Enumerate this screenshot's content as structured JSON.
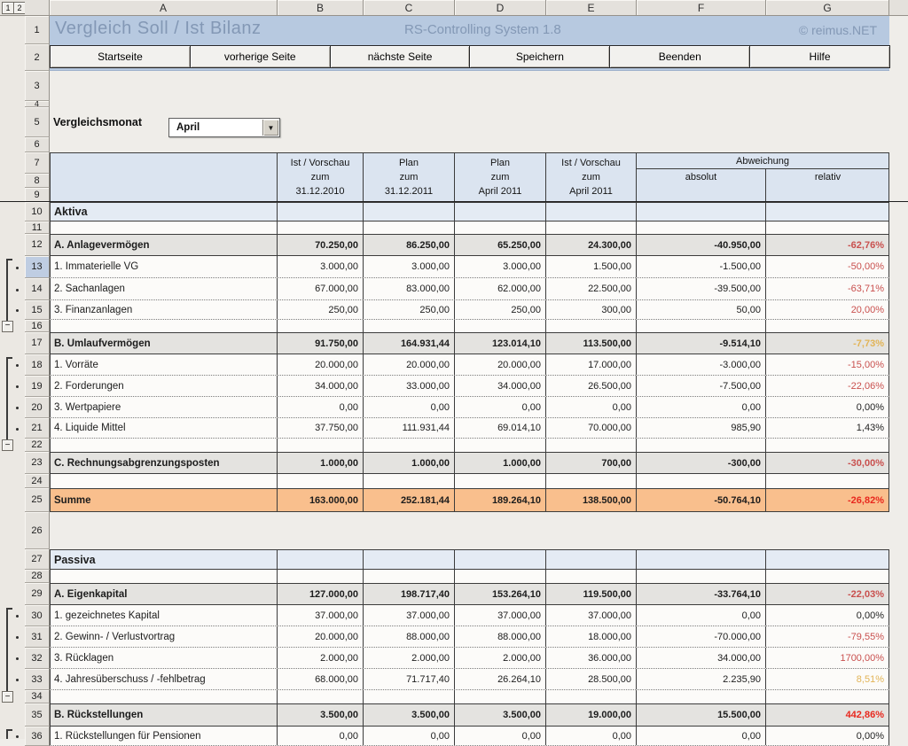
{
  "title_bar": {
    "title": "Vergleich Soll / Ist Bilanz",
    "system": "RS-Controlling System 1.8",
    "copyright": "© reimus.NET"
  },
  "toolbar": {
    "buttons": [
      "Startseite",
      "vorherige Seite",
      "nächste Seite",
      "Speichern",
      "Beenden",
      "Hilfe"
    ]
  },
  "controls": {
    "month_label": "Vergleichsmonat",
    "month_value": "April"
  },
  "colors": {
    "title_blue": "#b7c9e0",
    "header_blue": "#dbe4f0",
    "section_gray": "#e4e3e0",
    "label_blue": "#e4ebf4",
    "summe_orange": "#f9bf8d",
    "pct_red": "#c9504e",
    "pct_orange": "#e2b457",
    "pct_bright_red": "#e8281e"
  },
  "sheet": {
    "column_letters": [
      "A",
      "B",
      "C",
      "D",
      "E",
      "F",
      "G"
    ],
    "row_numbers": [
      1,
      2,
      3,
      4,
      5,
      6,
      7,
      8,
      9,
      10,
      11,
      12,
      13,
      14,
      15,
      16,
      17,
      18,
      19,
      20,
      21,
      22,
      23,
      24,
      25,
      26,
      27,
      28,
      29,
      30,
      31,
      32,
      33,
      34,
      35,
      36
    ],
    "active_row": 13,
    "header": {
      "col_b": [
        "Ist / Vorschau",
        "zum",
        "31.12.2010"
      ],
      "col_c": [
        "Plan",
        "zum",
        "31.12.2011"
      ],
      "col_d": [
        "Plan",
        "zum",
        "April 2011"
      ],
      "col_e": [
        "Ist / Vorschau",
        "zum",
        "April 2011"
      ],
      "abweichung": "Abweichung",
      "absolut": "absolut",
      "relativ": "relativ"
    },
    "outline": {
      "level_buttons": [
        "1",
        "2"
      ],
      "groups": [
        {
          "dots": [
            13,
            14,
            15
          ],
          "collapse": 16
        },
        {
          "dots": [
            18,
            19,
            20,
            21
          ],
          "collapse": 22
        },
        {
          "dots": [
            30,
            31,
            32,
            33
          ],
          "collapse": 34
        },
        {
          "dots": [
            36
          ],
          "collapse": null
        }
      ]
    },
    "rows": [
      {
        "num": 10,
        "type": "label",
        "label": "Aktiva"
      },
      {
        "num": 11,
        "type": "blank",
        "label": ""
      },
      {
        "num": 12,
        "type": "section",
        "label": "A. Anlagevermögen",
        "values": [
          "70.250,00",
          "86.250,00",
          "65.250,00",
          "24.300,00",
          "-40.950,00"
        ],
        "pct": "-62,76%",
        "pct_class": "red"
      },
      {
        "num": 13,
        "type": "detail",
        "label": "1. Immaterielle VG",
        "values": [
          "3.000,00",
          "3.000,00",
          "3.000,00",
          "1.500,00",
          "-1.500,00"
        ],
        "pct": "-50,00%",
        "pct_class": "red"
      },
      {
        "num": 14,
        "type": "detail",
        "label": "2. Sachanlagen",
        "values": [
          "67.000,00",
          "83.000,00",
          "62.000,00",
          "22.500,00",
          "-39.500,00"
        ],
        "pct": "-63,71%",
        "pct_class": "red"
      },
      {
        "num": 15,
        "type": "detail",
        "label": "3. Finanzanlagen",
        "values": [
          "250,00",
          "250,00",
          "250,00",
          "300,00",
          "50,00"
        ],
        "pct": "20,00%",
        "pct_class": "red"
      },
      {
        "num": 16,
        "type": "blank",
        "label": ""
      },
      {
        "num": 17,
        "type": "section",
        "label": "B. Umlaufvermögen",
        "values": [
          "91.750,00",
          "164.931,44",
          "123.014,10",
          "113.500,00",
          "-9.514,10"
        ],
        "pct": "-7,73%",
        "pct_class": "orange"
      },
      {
        "num": 18,
        "type": "detail",
        "label": "1. Vorräte",
        "values": [
          "20.000,00",
          "20.000,00",
          "20.000,00",
          "17.000,00",
          "-3.000,00"
        ],
        "pct": "-15,00%",
        "pct_class": "red"
      },
      {
        "num": 19,
        "type": "detail",
        "label": "2. Forderungen",
        "values": [
          "34.000,00",
          "33.000,00",
          "34.000,00",
          "26.500,00",
          "-7.500,00"
        ],
        "pct": "-22,06%",
        "pct_class": "red"
      },
      {
        "num": 20,
        "type": "detail",
        "label": "3. Wertpapiere",
        "values": [
          "0,00",
          "0,00",
          "0,00",
          "0,00",
          "0,00"
        ],
        "pct": "0,00%",
        "pct_class": "black"
      },
      {
        "num": 21,
        "type": "detail",
        "label": "4. Liquide Mittel",
        "values": [
          "37.750,00",
          "111.931,44",
          "69.014,10",
          "70.000,00",
          "985,90"
        ],
        "pct": "1,43%",
        "pct_class": "black"
      },
      {
        "num": 22,
        "type": "blank",
        "label": ""
      },
      {
        "num": 23,
        "type": "section",
        "label": "C. Rechnungsabgrenzungsposten",
        "values": [
          "1.000,00",
          "1.000,00",
          "1.000,00",
          "700,00",
          "-300,00"
        ],
        "pct": "-30,00%",
        "pct_class": "red"
      },
      {
        "num": 24,
        "type": "blank",
        "label": ""
      },
      {
        "num": 25,
        "type": "summe",
        "label": "Summe",
        "values": [
          "163.000,00",
          "252.181,44",
          "189.264,10",
          "138.500,00",
          "-50.764,10"
        ],
        "pct": "-26,82%",
        "pct_class": "bright"
      },
      {
        "num": 26,
        "type": "gap",
        "label": ""
      },
      {
        "num": 27,
        "type": "label",
        "label": "Passiva"
      },
      {
        "num": 28,
        "type": "blank",
        "label": ""
      },
      {
        "num": 29,
        "type": "section",
        "label": "A. Eigenkapital",
        "values": [
          "127.000,00",
          "198.717,40",
          "153.264,10",
          "119.500,00",
          "-33.764,10"
        ],
        "pct": "-22,03%",
        "pct_class": "red"
      },
      {
        "num": 30,
        "type": "detail",
        "label": "1. gezeichnetes Kapital",
        "values": [
          "37.000,00",
          "37.000,00",
          "37.000,00",
          "37.000,00",
          "0,00"
        ],
        "pct": "0,00%",
        "pct_class": "black"
      },
      {
        "num": 31,
        "type": "detail",
        "label": "2. Gewinn- / Verlustvortrag",
        "values": [
          "20.000,00",
          "88.000,00",
          "88.000,00",
          "18.000,00",
          "-70.000,00"
        ],
        "pct": "-79,55%",
        "pct_class": "red"
      },
      {
        "num": 32,
        "type": "detail",
        "label": "3. Rücklagen",
        "values": [
          "2.000,00",
          "2.000,00",
          "2.000,00",
          "36.000,00",
          "34.000,00"
        ],
        "pct": "1700,00%",
        "pct_class": "red"
      },
      {
        "num": 33,
        "type": "detail",
        "label": "4. Jahresüberschuss / -fehlbetrag",
        "values": [
          "68.000,00",
          "71.717,40",
          "26.264,10",
          "28.500,00",
          "2.235,90"
        ],
        "pct": "8,51%",
        "pct_class": "orange"
      },
      {
        "num": 34,
        "type": "blank",
        "label": ""
      },
      {
        "num": 35,
        "type": "section",
        "label": "B. Rückstellungen",
        "values": [
          "3.500,00",
          "3.500,00",
          "3.500,00",
          "19.000,00",
          "15.500,00"
        ],
        "pct": "442,86%",
        "pct_class": "bright"
      },
      {
        "num": 36,
        "type": "detail",
        "label": "1. Rückstellungen für Pensionen",
        "values": [
          "0,00",
          "0,00",
          "0,00",
          "0,00",
          "0,00"
        ],
        "pct": "0,00%",
        "pct_class": "black"
      }
    ]
  }
}
